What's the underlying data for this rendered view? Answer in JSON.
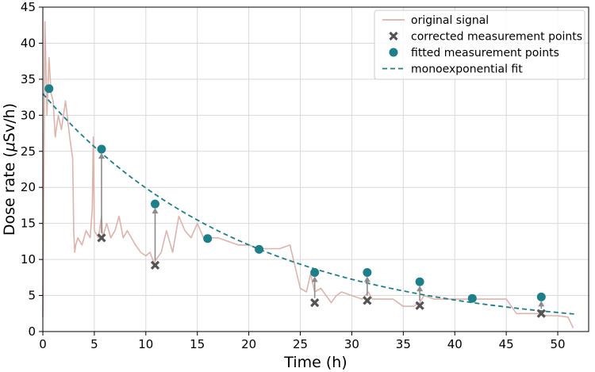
{
  "chart_data": {
    "type": "line",
    "xlabel": "Time (h)",
    "ylabel_prefix": "Dose rate (",
    "ylabel_mu": "μ",
    "ylabel_suffix": "Sv/h)",
    "xlim": [
      0,
      53
    ],
    "ylim": [
      0,
      45
    ],
    "xticks": [
      0,
      5,
      10,
      15,
      20,
      25,
      30,
      35,
      40,
      45,
      50
    ],
    "yticks": [
      0,
      5,
      10,
      15,
      20,
      25,
      30,
      35,
      40,
      45
    ],
    "grid": true,
    "legend_position": "top-right",
    "colors": {
      "original": "#ddb3ac",
      "corrected": "#545454",
      "fitted": "#1c7f89",
      "fit": "#1c7f89",
      "arrow": "#8c8c8c"
    },
    "legend": [
      {
        "key": "original",
        "label": "original signal"
      },
      {
        "key": "corrected",
        "label": "corrected measurement points"
      },
      {
        "key": "fitted",
        "label": "fitted measurement points"
      },
      {
        "key": "fit",
        "label": "monoexponential fit"
      }
    ],
    "series": [
      {
        "name": "original signal",
        "key": "original",
        "x": [
          0,
          0.2,
          0.4,
          0.6,
          0.8,
          1.0,
          1.2,
          1.5,
          1.8,
          2.2,
          2.6,
          2.9,
          3.0,
          3.1,
          3.2,
          3.4,
          3.8,
          4.2,
          4.6,
          4.8,
          4.9,
          5.0,
          5.4,
          5.7,
          5.8,
          6.0,
          6.2,
          6.6,
          7.0,
          7.4,
          7.8,
          8.2,
          8.6,
          9.0,
          9.5,
          10.0,
          10.4,
          10.8,
          11.0,
          11.5,
          12.0,
          12.6,
          13.2,
          13.8,
          14.4,
          15.0,
          15.6,
          16.0,
          16.2,
          17.0,
          18.0,
          19.0,
          20.0,
          21.0,
          22.0,
          23.0,
          24.0,
          25.0,
          25.6,
          26.0,
          26.4,
          27.0,
          28.0,
          28.5,
          29.0,
          30.0,
          31.0,
          31.6,
          32.0,
          33.0,
          34.0,
          35.0,
          36.0,
          36.6,
          37.0,
          38.0,
          39.0,
          40.0,
          41.0,
          42.0,
          43.0,
          44.0,
          45.0,
          46.0,
          46.5,
          47.0,
          48.0,
          49.0,
          50.0,
          51.0,
          51.5
        ],
        "y": [
          2,
          43,
          30,
          38,
          33,
          32,
          27,
          30,
          28,
          32,
          27,
          24,
          14,
          11,
          12,
          13,
          12,
          14,
          13,
          17,
          27,
          14,
          13,
          16,
          13,
          14,
          15,
          13,
          14,
          16,
          13,
          14,
          13,
          12,
          11,
          10.5,
          11,
          9.5,
          10,
          11,
          14,
          11,
          16,
          14,
          13,
          15,
          13,
          12.5,
          13,
          13,
          12.5,
          12,
          12,
          11.5,
          11.5,
          11.5,
          12,
          6,
          5.5,
          8,
          5.5,
          6,
          4,
          5,
          5.5,
          5,
          4.5,
          5.5,
          4.5,
          4.5,
          4.5,
          3.5,
          3.5,
          4,
          5,
          4.5,
          4.5,
          4.5,
          4.5,
          4.5,
          4.5,
          4.5,
          4.5,
          2.5,
          2.5,
          2.5,
          2.5,
          2.2,
          2.2,
          2.0,
          0.5
        ]
      }
    ],
    "corrected_points": {
      "name": "corrected measurement points",
      "x": [
        5.7,
        10.9,
        26.4,
        31.5,
        36.6,
        48.4
      ],
      "y": [
        13.0,
        9.2,
        4.0,
        4.3,
        3.6,
        2.5
      ]
    },
    "fitted_points": {
      "name": "fitted measurement points",
      "x": [
        0.6,
        5.7,
        10.9,
        16.0,
        21.0,
        26.4,
        31.5,
        36.6,
        41.7,
        48.4
      ],
      "y": [
        33.7,
        25.3,
        17.7,
        12.9,
        11.4,
        8.2,
        8.2,
        6.9,
        4.6,
        4.8
      ]
    },
    "fit": {
      "name": "monoexponential fit",
      "a": 33.0,
      "k": 0.0505,
      "x_start": 0,
      "x_end": 51.8
    }
  }
}
